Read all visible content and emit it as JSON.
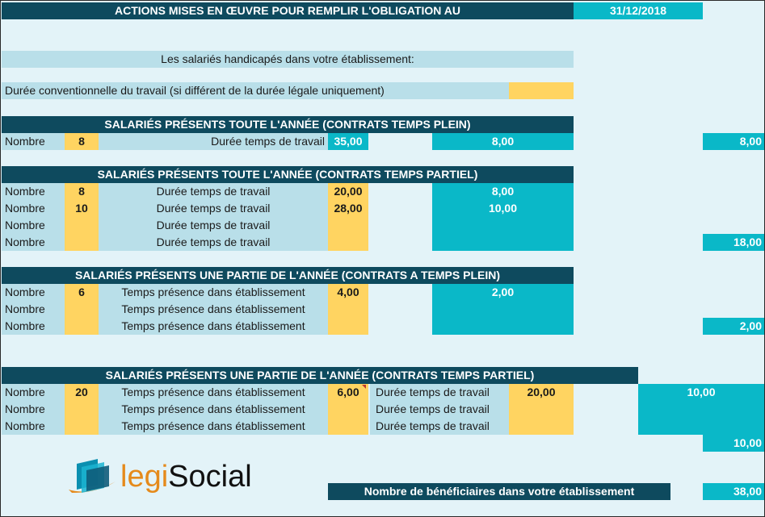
{
  "header": {
    "title": "ACTIONS MISES EN ŒUVRE POUR REMPLIR L'OBLIGATION AU",
    "date": "31/12/2018"
  },
  "intro": {
    "employees_label": "Les salariés handicapés dans votre établissement:",
    "duration_label": "Durée conventionnelle du travail (si différent de la durée légale uniquement)",
    "duration_value": ""
  },
  "labels": {
    "nombre": "Nombre",
    "duree_travail": "Durée temps de travail",
    "temps_presence": "Temps présence dans établissement"
  },
  "section1": {
    "title": "SALARIÉS PRÉSENTS TOUTE L'ANNÉE (CONTRATS TEMPS PLEIN)",
    "row": {
      "count": "8",
      "hours": "35,00",
      "result": "8,00"
    },
    "total": "8,00"
  },
  "section2": {
    "title": "SALARIÉS PRÉSENTS TOUTE L'ANNÉE (CONTRATS TEMPS PARTIEL)",
    "rows": [
      {
        "count": "8",
        "hours": "20,00",
        "result": "8,00"
      },
      {
        "count": "10",
        "hours": "28,00",
        "result": "10,00"
      },
      {
        "count": "",
        "hours": "",
        "result": ""
      },
      {
        "count": "",
        "hours": "",
        "result": ""
      }
    ],
    "total": "18,00"
  },
  "section3": {
    "title": "SALARIÉS PRÉSENTS UNE PARTIE DE L'ANNÉE (CONTRATS A TEMPS PLEIN)",
    "rows": [
      {
        "count": "6",
        "presence": "4,00",
        "result": "2,00"
      },
      {
        "count": "",
        "presence": "",
        "result": ""
      },
      {
        "count": "",
        "presence": "",
        "result": ""
      }
    ],
    "total": "2,00"
  },
  "section4": {
    "title": "SALARIÉS PRÉSENTS UNE PARTIE DE L'ANNÉE (CONTRATS TEMPS PARTIEL)",
    "rows": [
      {
        "count": "20",
        "presence": "6,00",
        "hours": "20,00",
        "result": "10,00"
      },
      {
        "count": "",
        "presence": "",
        "hours": "",
        "result": ""
      },
      {
        "count": "",
        "presence": "",
        "hours": "",
        "result": ""
      }
    ],
    "total": "10,00"
  },
  "footer": {
    "label": "Nombre de bénéficiaires dans votre établissement",
    "total": "38,00"
  },
  "logo": {
    "part1": "legi",
    "part2": "Social"
  },
  "colors": {
    "dark": "#0e4a5e",
    "light": "#b9dfe9",
    "yellow": "#ffd461",
    "turquoise": "#0ab8c8",
    "background": "#e3f3f8"
  }
}
